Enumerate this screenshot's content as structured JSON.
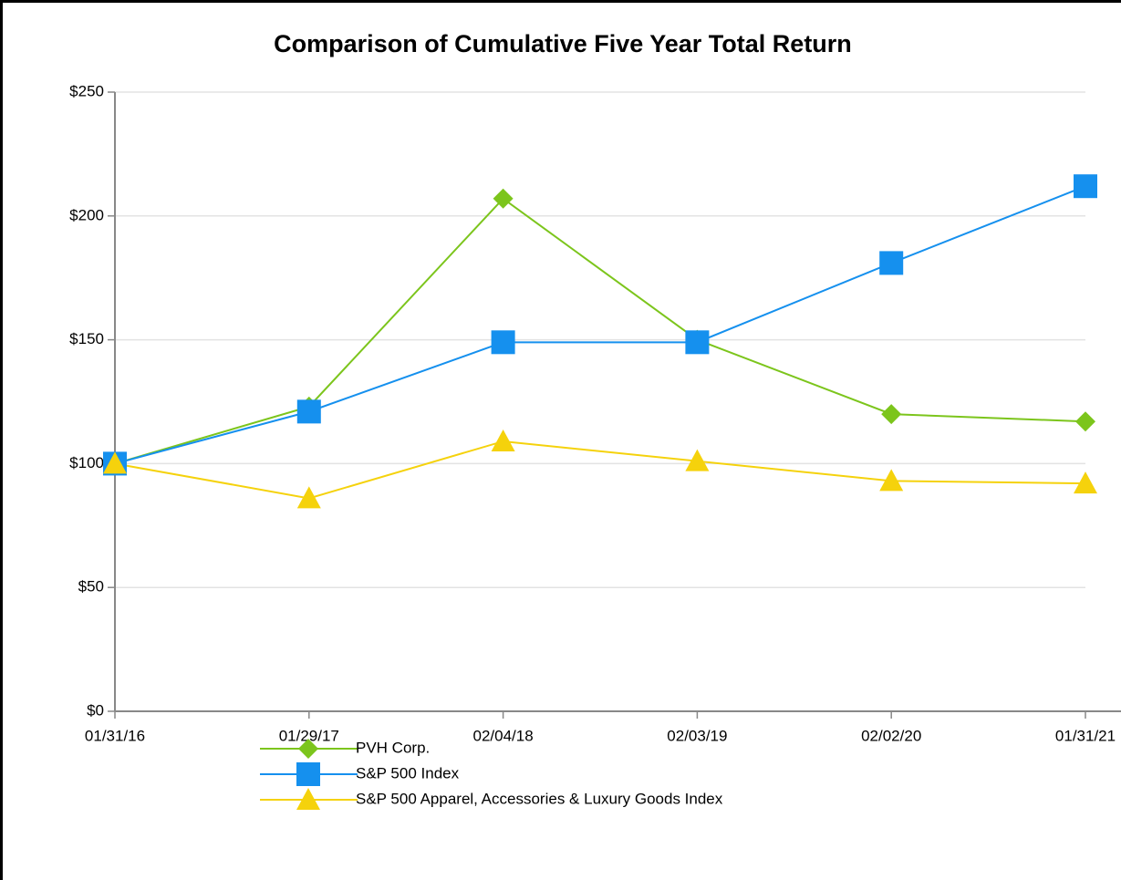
{
  "chart_data": {
    "type": "line",
    "title": "Comparison of Cumulative Five Year Total Return",
    "categories": [
      "01/31/16",
      "01/29/17",
      "02/04/18",
      "02/03/19",
      "02/02/20",
      "01/31/21"
    ],
    "series": [
      {
        "name": "PVH Corp.",
        "color": "#7cc51c",
        "marker": "diamond",
        "values": [
          100,
          123,
          207,
          150,
          120,
          117
        ]
      },
      {
        "name": "S&P 500 Index",
        "color": "#1590ee",
        "marker": "square",
        "values": [
          100,
          121,
          149,
          149,
          181,
          212
        ]
      },
      {
        "name": "S&P 500 Apparel, Accessories & Luxury Goods Index",
        "color": "#f5d20c",
        "marker": "triangle",
        "values": [
          100,
          86,
          109,
          101,
          93,
          92
        ]
      }
    ],
    "ylim": [
      0,
      250
    ],
    "yticks": [
      {
        "value": 0,
        "label": "$0"
      },
      {
        "value": 50,
        "label": "$50"
      },
      {
        "value": 100,
        "label": "$100"
      },
      {
        "value": 150,
        "label": "$150"
      },
      {
        "value": 200,
        "label": "$200"
      },
      {
        "value": 250,
        "label": "$250"
      }
    ],
    "grid": true
  }
}
